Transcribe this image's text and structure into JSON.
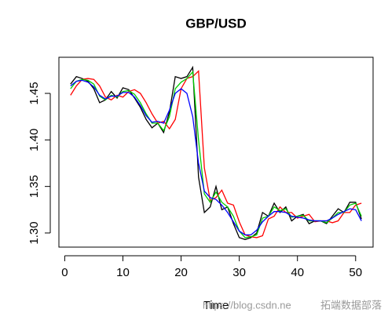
{
  "chart_data": {
    "type": "line",
    "title": "GBP/USD",
    "x_label": "Time",
    "x": [
      1,
      2,
      3,
      4,
      5,
      6,
      7,
      8,
      9,
      10,
      11,
      12,
      13,
      14,
      15,
      16,
      17,
      18,
      19,
      20,
      21,
      22,
      23,
      24,
      25,
      26,
      27,
      28,
      29,
      30,
      31,
      32,
      33,
      34,
      35,
      36,
      37,
      38,
      39,
      40,
      41,
      42,
      43,
      44,
      45,
      46,
      47,
      48,
      49,
      50,
      51
    ],
    "series": [
      {
        "color": "#000000",
        "values": [
          1.46,
          1.468,
          1.466,
          1.463,
          1.455,
          1.44,
          1.443,
          1.452,
          1.445,
          1.456,
          1.454,
          1.445,
          1.435,
          1.422,
          1.413,
          1.418,
          1.408,
          1.43,
          1.468,
          1.466,
          1.468,
          1.478,
          1.36,
          1.322,
          1.328,
          1.35,
          1.325,
          1.328,
          1.31,
          1.295,
          1.293,
          1.295,
          1.3,
          1.322,
          1.318,
          1.332,
          1.322,
          1.328,
          1.313,
          1.318,
          1.32,
          1.31,
          1.313,
          1.313,
          1.31,
          1.318,
          1.326,
          1.322,
          1.333,
          1.333,
          1.315
        ]
      },
      {
        "color": "#ff0000",
        "values": [
          1.448,
          1.458,
          1.465,
          1.466,
          1.465,
          1.458,
          1.446,
          1.443,
          1.448,
          1.446,
          1.452,
          1.454,
          1.45,
          1.44,
          1.428,
          1.418,
          1.42,
          1.412,
          1.422,
          1.455,
          1.466,
          1.468,
          1.474,
          1.37,
          1.335,
          1.338,
          1.346,
          1.332,
          1.33,
          1.312,
          1.298,
          1.296,
          1.295,
          1.297,
          1.315,
          1.318,
          1.328,
          1.322,
          1.322,
          1.316,
          1.318,
          1.32,
          1.312,
          1.313,
          1.313,
          1.311,
          1.313,
          1.322,
          1.322,
          1.33,
          1.332
        ]
      },
      {
        "color": "#00cd00",
        "values": [
          1.455,
          1.463,
          1.465,
          1.464,
          1.46,
          1.447,
          1.443,
          1.448,
          1.446,
          1.452,
          1.453,
          1.449,
          1.44,
          1.428,
          1.418,
          1.418,
          1.41,
          1.425,
          1.455,
          1.462,
          1.466,
          1.473,
          1.4,
          1.342,
          1.333,
          1.344,
          1.333,
          1.328,
          1.318,
          1.302,
          1.295,
          1.296,
          1.298,
          1.316,
          1.318,
          1.328,
          1.324,
          1.326,
          1.317,
          1.318,
          1.319,
          1.313,
          1.313,
          1.313,
          1.311,
          1.316,
          1.322,
          1.322,
          1.33,
          1.332,
          1.318
        ]
      },
      {
        "color": "#0000ff",
        "values": [
          1.458,
          1.463,
          1.464,
          1.462,
          1.457,
          1.448,
          1.444,
          1.447,
          1.447,
          1.451,
          1.451,
          1.446,
          1.437,
          1.426,
          1.419,
          1.42,
          1.418,
          1.432,
          1.45,
          1.455,
          1.45,
          1.425,
          1.375,
          1.345,
          1.338,
          1.336,
          1.33,
          1.322,
          1.312,
          1.302,
          1.298,
          1.298,
          1.303,
          1.312,
          1.318,
          1.323,
          1.323,
          1.322,
          1.318,
          1.317,
          1.316,
          1.314,
          1.313,
          1.313,
          1.313,
          1.316,
          1.32,
          1.323,
          1.326,
          1.325,
          1.313
        ]
      }
    ],
    "xlim": [
      -1,
      53
    ],
    "xticks": [
      0,
      10,
      20,
      30,
      40,
      50
    ],
    "ylim": [
      1.2848,
      1.4888
    ],
    "yticks": [
      {
        "value": 1.3,
        "label": "1.30"
      },
      1.35,
      {
        "value": 1.4,
        "label": "1.40"
      },
      1.45
    ]
  },
  "watermark": {
    "url": "https://blog.csdn.ne",
    "brand": "拓端数据部落"
  }
}
